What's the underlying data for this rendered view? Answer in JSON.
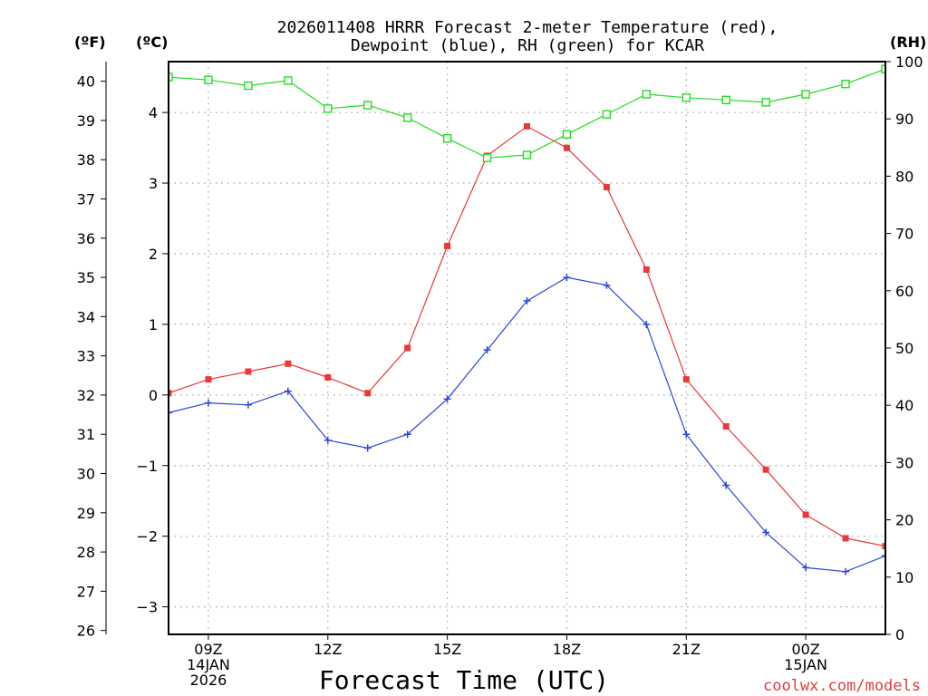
{
  "chart_data": {
    "type": "line",
    "title_line1": "2026011408 HRRR Forecast 2-meter Temperature (red),",
    "title_line2": "Dewpoint (blue), RH (green) for KCAR",
    "xlabel": "Forecast Time (UTC)",
    "unit_labels": {
      "f": "(ºF)",
      "c": "(ºC)",
      "rh": "(RH)"
    },
    "credit": "coolwx.com/models",
    "x_hours": [
      8,
      9,
      10,
      11,
      12,
      13,
      14,
      15,
      16,
      17,
      18,
      19,
      20,
      21,
      22,
      23,
      24,
      25,
      26
    ],
    "x_ticks": [
      {
        "hour": 9,
        "lines": [
          "09Z",
          "14JAN",
          "2026"
        ]
      },
      {
        "hour": 12,
        "lines": [
          "12Z"
        ]
      },
      {
        "hour": 15,
        "lines": [
          "15Z"
        ]
      },
      {
        "hour": 18,
        "lines": [
          "18Z"
        ]
      },
      {
        "hour": 21,
        "lines": [
          "21Z"
        ]
      },
      {
        "hour": 24,
        "lines": [
          "00Z",
          "15JAN"
        ]
      }
    ],
    "y_f": {
      "range": [
        25.9,
        40.5
      ],
      "ticks": [
        26,
        27,
        28,
        29,
        30,
        31,
        32,
        33,
        34,
        35,
        36,
        37,
        38,
        39,
        40
      ]
    },
    "y_c": {
      "range": [
        -3.39,
        4.72
      ],
      "ticks": [
        "-3",
        "-2",
        "-1",
        "0",
        "1",
        "2",
        "3",
        "4"
      ]
    },
    "y_rh": {
      "range": [
        0,
        100
      ],
      "ticks": [
        0,
        10,
        20,
        30,
        40,
        50,
        60,
        70,
        80,
        90,
        100
      ]
    },
    "series": [
      {
        "name": "Temperature",
        "color": "#e8383b",
        "axis": "f",
        "marker": "square-filled",
        "values": [
          32.05,
          32.4,
          32.6,
          32.8,
          32.45,
          32.05,
          33.2,
          35.8,
          38.1,
          38.85,
          38.3,
          37.3,
          35.2,
          32.4,
          31.2,
          30.1,
          28.95,
          28.35,
          28.15
        ]
      },
      {
        "name": "Dewpoint",
        "color": "#2b45dc",
        "axis": "f",
        "marker": "plus",
        "values": [
          31.55,
          31.8,
          31.75,
          32.1,
          30.85,
          30.65,
          31.0,
          31.9,
          33.15,
          34.4,
          35.0,
          34.8,
          33.8,
          31.0,
          29.7,
          28.5,
          27.6,
          27.5,
          27.9
        ]
      },
      {
        "name": "RH",
        "color": "#22dd22",
        "axis": "rh",
        "marker": "square-open",
        "values": [
          97.3,
          96.8,
          95.8,
          96.7,
          91.8,
          92.4,
          90.2,
          86.6,
          83.2,
          83.7,
          87.3,
          90.8,
          94.3,
          93.7,
          93.3,
          92.9,
          94.3,
          96.1,
          98.7
        ]
      }
    ]
  }
}
